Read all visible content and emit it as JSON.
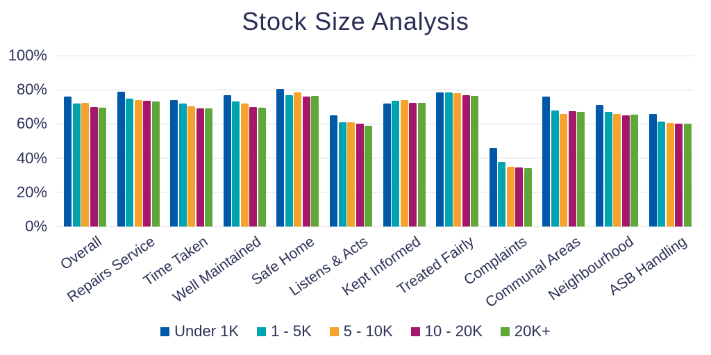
{
  "style": {
    "background": "#FFFFFF",
    "title_color": "#2A2E55",
    "text_color": "#2B3157",
    "gridline_color": "#DBDBDB"
  },
  "chart_data": {
    "type": "bar",
    "title": "Stock Size Analysis",
    "xlabel": "",
    "ylabel": "",
    "ylim": [
      0,
      100
    ],
    "grid": "horizontal",
    "legend_position": "bottom",
    "categories": [
      "Overall",
      "Repairs Service",
      "Time Taken",
      "Well Maintained",
      "Safe Home",
      "Listens & Acts",
      "Kept Informed",
      "Treated Fairly",
      "Complaints",
      "Communal Areas",
      "Neighbourhood",
      "ASB Handling"
    ],
    "yticks": [
      {
        "value": 100,
        "label": "100%"
      },
      {
        "value": 80,
        "label": "80%"
      },
      {
        "value": 60,
        "label": "60%"
      },
      {
        "value": 40,
        "label": "40%"
      },
      {
        "value": 20,
        "label": "20%"
      },
      {
        "value": 0,
        "label": "0%"
      }
    ],
    "series": [
      {
        "name": "Under 1K",
        "color": "#0058A9",
        "values": [
          76,
          79,
          74,
          77,
          80.5,
          65,
          72,
          78.5,
          46,
          76,
          71,
          66
        ]
      },
      {
        "name": "1 - 5K",
        "color": "#00A3B2",
        "values": [
          72,
          75,
          72,
          73,
          77,
          61,
          73.5,
          78.5,
          38,
          68,
          67,
          61.5
        ]
      },
      {
        "name": "5 - 10K",
        "color": "#F6A22D",
        "values": [
          72.5,
          74,
          70.5,
          72,
          78.5,
          61,
          74,
          78,
          35,
          66,
          66,
          60.5
        ]
      },
      {
        "name": "10 - 20K",
        "color": "#A4176B",
        "values": [
          70,
          73.5,
          69,
          70,
          76,
          60,
          72.5,
          77,
          34.5,
          67.5,
          65,
          60
        ]
      },
      {
        "name": "20K+",
        "color": "#60A739",
        "values": [
          69.5,
          73,
          69,
          69.5,
          76.5,
          59,
          72.5,
          76.5,
          34,
          67,
          65.5,
          60
        ]
      }
    ]
  }
}
